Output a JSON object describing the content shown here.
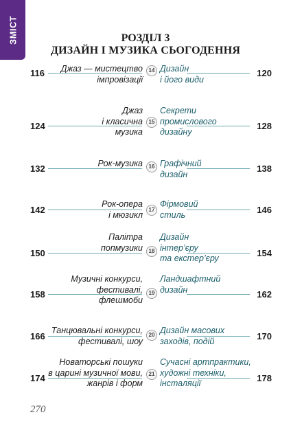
{
  "sidebar_tab": {
    "label": "ЗМІСТ"
  },
  "section": {
    "title_line1": "РОЗДІЛ 3",
    "title_line2": "ДИЗАЙН І МУЗИКА СЬОГОДЕННЯ"
  },
  "entries": [
    {
      "number": "14",
      "left_lines": [
        "Джаз — мистецтво",
        "імпровізації"
      ],
      "left_page": "116",
      "right_lines": [
        "Дизайн",
        "і його види"
      ],
      "right_page": "120"
    },
    {
      "number": "15",
      "left_lines": [
        "Джаз",
        "і класична",
        "музика"
      ],
      "left_page": "124",
      "right_lines": [
        "Секрети",
        "промислового",
        "дизайну"
      ],
      "right_page": "128"
    },
    {
      "number": "16",
      "left_lines": [
        "Рок-музика"
      ],
      "left_page": "132",
      "right_lines": [
        "Графічний",
        "дизайн"
      ],
      "right_page": "138"
    },
    {
      "number": "17",
      "left_lines": [
        "Рок-опера",
        "і мюзикл"
      ],
      "left_page": "142",
      "right_lines": [
        "Фірмовий",
        "стиль"
      ],
      "right_page": "146"
    },
    {
      "number": "18",
      "left_lines": [
        "Палітра",
        "попмузики"
      ],
      "left_page": "150",
      "right_lines": [
        "Дизайн",
        "інтер’єру",
        "та екстер’єру"
      ],
      "right_page": "154"
    },
    {
      "number": "19",
      "left_lines": [
        "Музичні конкурси,",
        "фестивалі,",
        "флешмоби"
      ],
      "left_page": "158",
      "right_lines": [
        "Ландшафтний",
        "дизайн"
      ],
      "right_page": "162"
    },
    {
      "number": "20",
      "left_lines": [
        "Танцювальні конкурси,",
        "фестивалі, шоу"
      ],
      "left_page": "166",
      "right_lines": [
        "Дизайн масових",
        "заходів, подій"
      ],
      "right_page": "170"
    },
    {
      "number": "21",
      "left_lines": [
        "Новаторські пошуки",
        "в царині музичної мови,",
        "жанрів і форм"
      ],
      "left_page": "174",
      "right_lines": [
        "Сучасні артпрактики,",
        "художні техніки,",
        "інсталяції"
      ],
      "right_page": "178"
    }
  ],
  "footer": {
    "page_number": "270"
  }
}
